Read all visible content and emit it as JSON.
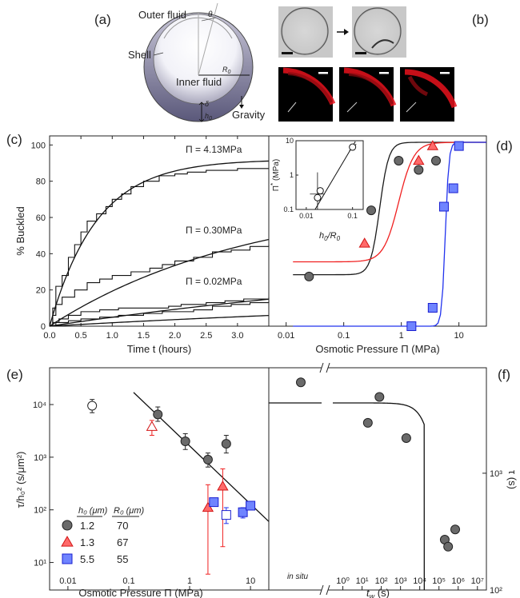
{
  "panel_a": {
    "label": "(a)",
    "outer_fluid": "Outer fluid",
    "shell": "Shell",
    "inner_fluid": "Inner fluid",
    "gravity": "Gravity",
    "theta": "θ",
    "r0": "R",
    "r0_sub": "0",
    "delta": "δ",
    "h0": "h",
    "h0_sub": "0"
  },
  "panel_b": {
    "label": "(b)"
  },
  "colors": {
    "black": "#1a1a1a",
    "red": "#f02020",
    "blue": "#2233ee",
    "gray_marker": "#6a6a6a",
    "red_marker": "#ff6a6a",
    "blue_marker": "#6f84ff",
    "fluor": "#e8121c"
  },
  "chart_data": [
    {
      "panel": "(c)",
      "type": "line",
      "xlabel": "Time t (hours)",
      "ylabel": "% Buckled",
      "xlim": [
        0,
        3.5
      ],
      "ylim": [
        0,
        105
      ],
      "xticks": [
        "0.0",
        "0.5",
        "1.0",
        "1.5",
        "2.0",
        "2.5",
        "3.0"
      ],
      "yticks": [
        "0",
        "20",
        "40",
        "60",
        "80",
        "100"
      ],
      "annotations": [
        "Π = 4.13MPa",
        "Π = 0.30MPa",
        "Π = 0.02MPa"
      ],
      "series": [
        {
          "fit_tau_hours": 0.75,
          "fit_max": 92,
          "steps": [
            [
              0,
              0
            ],
            [
              0.05,
              10
            ],
            [
              0.1,
              22
            ],
            [
              0.2,
              28
            ],
            [
              0.3,
              38
            ],
            [
              0.4,
              45
            ],
            [
              0.5,
              52
            ],
            [
              0.6,
              58
            ],
            [
              0.75,
              62
            ],
            [
              0.9,
              66
            ],
            [
              1.0,
              70
            ],
            [
              1.15,
              73
            ],
            [
              1.3,
              77
            ],
            [
              1.5,
              80
            ],
            [
              1.75,
              83
            ],
            [
              2.0,
              84
            ],
            [
              2.2,
              85
            ],
            [
              2.5,
              86
            ],
            [
              3.0,
              87
            ],
            [
              3.5,
              87
            ]
          ]
        },
        {
          "fit_tau_hours": 3.2,
          "fit_max": 72,
          "steps": [
            [
              0,
              0
            ],
            [
              0.05,
              6
            ],
            [
              0.1,
              12
            ],
            [
              0.2,
              16
            ],
            [
              0.4,
              20
            ],
            [
              0.6,
              24
            ],
            [
              0.8,
              26
            ],
            [
              1.0,
              28
            ],
            [
              1.3,
              30
            ],
            [
              1.6,
              32
            ],
            [
              1.8,
              34
            ],
            [
              2.0,
              36
            ],
            [
              2.3,
              38
            ],
            [
              2.6,
              41
            ],
            [
              2.9,
              42
            ],
            [
              3.2,
              44
            ],
            [
              3.5,
              45
            ]
          ]
        },
        {
          "fit_tau_hours": 8.0,
          "fit_max": 42,
          "steps": [
            [
              0,
              0
            ],
            [
              0.05,
              2
            ],
            [
              0.15,
              4
            ],
            [
              0.3,
              6
            ],
            [
              0.5,
              8
            ],
            [
              0.8,
              9
            ],
            [
              1.1,
              10
            ],
            [
              1.5,
              10
            ],
            [
              1.9,
              11
            ],
            [
              2.1,
              12
            ],
            [
              2.5,
              13
            ],
            [
              2.8,
              14
            ],
            [
              3.1,
              15
            ],
            [
              3.3,
              15
            ],
            [
              3.5,
              16
            ]
          ]
        },
        {
          "fit_tau_hours": 10.0,
          "fit_max": 20,
          "steps": [
            [
              0,
              0
            ],
            [
              0.1,
              2
            ],
            [
              0.3,
              3
            ],
            [
              0.5,
              4
            ],
            [
              0.8,
              5
            ],
            [
              1.1,
              6
            ],
            [
              1.5,
              7
            ],
            [
              1.8,
              8
            ],
            [
              2.0,
              8
            ],
            [
              2.3,
              9
            ],
            [
              2.6,
              11
            ],
            [
              2.9,
              12
            ],
            [
              3.2,
              13
            ],
            [
              3.5,
              14
            ]
          ]
        }
      ]
    },
    {
      "panel": "(d)",
      "type": "scatter",
      "xlabel": "Osmotic Pressure Π (MPa)",
      "xscale": "log",
      "xlim": [
        0.005,
        30
      ],
      "ylim": [
        0,
        100
      ],
      "xticks": [
        "0.01",
        "0.1",
        "1",
        "10"
      ],
      "series": [
        {
          "marker": "circle",
          "color": "gray",
          "x": [
            0.025,
            0.3,
            0.9,
            2.0,
            4.0
          ],
          "y": [
            27,
            63,
            90,
            85,
            90
          ],
          "fit_x0": 0.42,
          "fit_k": 5.5,
          "fit_min": 28,
          "fit_max": 100
        },
        {
          "marker": "triangle",
          "color": "red",
          "x": [
            0.23,
            2.0,
            3.5
          ],
          "y": [
            45,
            90,
            98
          ],
          "fit_x0": 0.9,
          "fit_k": 3.3,
          "fit_min": 35,
          "fit_max": 100
        },
        {
          "marker": "square",
          "color": "blue",
          "x": [
            1.5,
            3.5,
            5.5,
            8.0,
            10.0
          ],
          "y": [
            0,
            10,
            65,
            75,
            98
          ],
          "fit_x0": 5.8,
          "fit_k": 14,
          "fit_min": 0,
          "fit_max": 100
        }
      ],
      "inset": {
        "xlabel": "h",
        "xlabel_sub": "0",
        "xlabel_rest": "/R",
        "xlabel_sub2": "0",
        "ylabel": "Π",
        "ylabel_sup": "*",
        "ylabel_unit": " (MPa)",
        "xticks": [
          "0.01",
          "0.1"
        ],
        "yticks": [
          "0.1",
          "1",
          "10"
        ],
        "x": [
          0.0175,
          0.02,
          0.1
        ],
        "y": [
          0.22,
          0.35,
          6.5
        ]
      }
    },
    {
      "panel": "(e)",
      "type": "scatter",
      "xlabel": "Osmotic Pressure Π (MPa)",
      "ylabel": "τ/h₀² (s/μm²)",
      "xscale": "log",
      "yscale": "log",
      "xlim": [
        0.005,
        20
      ],
      "ylim": [
        3,
        50000
      ],
      "xticks": [
        "0.01",
        "0.1",
        "1",
        "10"
      ],
      "yticks": [
        "10¹",
        "10²",
        "10³",
        "10⁴"
      ],
      "legend": {
        "header_h0": "h₀ (μm)",
        "header_r0": "R₀ (μm)",
        "rows": [
          {
            "marker": "circle",
            "color": "gray",
            "h0": "1.2",
            "r0": "70"
          },
          {
            "marker": "triangle",
            "color": "red",
            "h0": "1.3",
            "r0": "67"
          },
          {
            "marker": "square",
            "color": "blue",
            "h0": "5.5",
            "r0": "55"
          }
        ]
      },
      "series": [
        {
          "marker": "circle",
          "color": "gray",
          "x": [
            0.3,
            0.85,
            2.0,
            4.0
          ],
          "y": [
            6500,
            2000,
            900,
            1800
          ],
          "err_lo": [
            4800,
            1400,
            650,
            1200
          ],
          "err_hi": [
            9000,
            2800,
            1200,
            2600
          ]
        },
        {
          "marker": "circle_open",
          "color": "gray",
          "x": [
            0.025
          ],
          "y": [
            9500
          ],
          "err_lo": [
            7000
          ],
          "err_hi": [
            12500
          ]
        },
        {
          "marker": "triangle",
          "color": "red",
          "x": [
            2.0,
            3.5
          ],
          "y": [
            110,
            280
          ],
          "err_lo": [
            6,
            20
          ],
          "err_hi": [
            300,
            600
          ]
        },
        {
          "marker": "triangle_open",
          "color": "red",
          "x": [
            0.24
          ],
          "y": [
            3800
          ],
          "err_lo": [
            2600
          ],
          "err_hi": [
            5000
          ]
        },
        {
          "marker": "square",
          "color": "blue",
          "x": [
            2.5,
            7.5,
            10.0
          ],
          "y": [
            140,
            90,
            120
          ],
          "err_lo": [
            120,
            70,
            100
          ],
          "err_hi": [
            160,
            110,
            140
          ]
        },
        {
          "marker": "square_open",
          "color": "blue",
          "x": [
            4.0
          ],
          "y": [
            80
          ],
          "err_lo": [
            55
          ],
          "err_hi": [
            110
          ]
        }
      ],
      "fit_line": {
        "x": [
          0.12,
          20
        ],
        "y": [
          17000,
          60
        ]
      }
    },
    {
      "panel": "(f)",
      "type": "scatter",
      "xlabel": "t",
      "xlabel_sub": "w",
      "xlabel_unit": " (s)",
      "ylabel": "τ (s)",
      "xscale": "log",
      "yscale": "log",
      "xlim": [
        0.01,
        30000000
      ],
      "ylim": [
        100,
        8000
      ],
      "xticks": [
        "10⁰",
        "10¹",
        "10²",
        "10³",
        "10⁴",
        "10⁵",
        "10⁶",
        "10⁷"
      ],
      "insitu_label": "in situ",
      "yticks": [
        "10²",
        "10³"
      ],
      "series": [
        {
          "marker": "circle",
          "color": "gray",
          "x": [
            "in situ",
            20,
            80,
            2000,
            200000,
            300000,
            700000
          ],
          "y": [
            6000,
            2700,
            4500,
            2000,
            270,
            235,
            330
          ]
        }
      ],
      "fit": {
        "plateau": 4000,
        "tau_s": 40000
      }
    }
  ]
}
